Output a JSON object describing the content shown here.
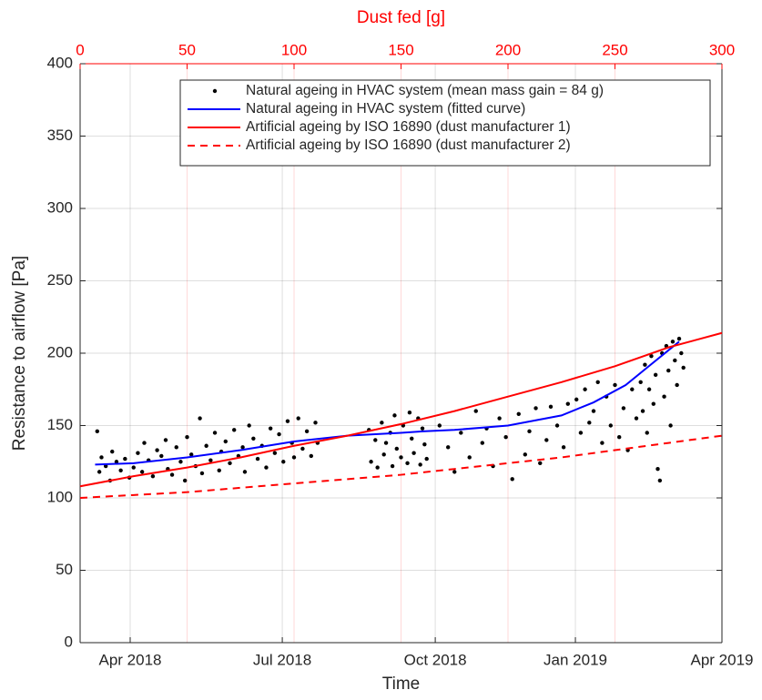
{
  "chart_data": {
    "type": "line",
    "xlabel": "Dust fed [g]",
    "xlim": [
      0,
      300
    ],
    "xticks": [
      0,
      50,
      100,
      150,
      200,
      250,
      300
    ],
    "axis_color": "#ff0000",
    "time_axis": {
      "label": "Time",
      "ticks": [
        {
          "value": 23.4,
          "label": "Apr 2018"
        },
        {
          "value": 94.5,
          "label": "Jul 2018"
        },
        {
          "value": 166,
          "label": "Oct 2018"
        },
        {
          "value": 231.5,
          "label": "Jan 2019"
        },
        {
          "value": 300,
          "label": "Apr 2019"
        }
      ]
    },
    "ylabel": "Resistance to airflow [Pa]",
    "ylim": [
      0,
      400
    ],
    "yticks": [
      0,
      50,
      100,
      150,
      200,
      250,
      300,
      350,
      400
    ],
    "grid": true,
    "legend": "top-right",
    "series": [
      {
        "name": "Natural ageing in HVAC system (mean mass gain = 84 g)",
        "type": "scatter",
        "color": "#000000",
        "x": [
          8,
          9,
          10,
          12,
          14,
          15,
          17,
          19,
          21,
          23,
          25,
          27,
          29,
          30,
          32,
          34,
          36,
          38,
          40,
          41,
          43,
          45,
          47,
          49,
          50,
          52,
          54,
          56,
          57,
          59,
          61,
          63,
          65,
          66,
          68,
          70,
          72,
          74,
          76,
          77,
          79,
          81,
          83,
          85,
          87,
          89,
          91,
          93,
          95,
          97,
          99,
          100,
          102,
          104,
          106,
          108,
          110,
          111,
          135,
          136,
          138,
          139,
          141,
          142,
          143,
          145,
          146,
          147,
          148,
          150,
          151,
          153,
          154,
          155,
          156,
          158,
          159,
          160,
          161,
          162,
          168,
          172,
          175,
          178,
          182,
          185,
          188,
          190,
          193,
          196,
          199,
          202,
          205,
          208,
          210,
          213,
          215,
          218,
          220,
          223,
          226,
          228,
          232,
          234,
          236,
          238,
          240,
          242,
          244,
          246,
          248,
          250,
          252,
          254,
          256,
          258,
          260,
          262,
          263,
          264,
          265,
          266,
          267,
          268,
          269,
          270,
          271,
          272,
          273,
          274,
          275,
          276,
          277,
          278,
          279,
          280,
          281,
          282
        ],
        "values": [
          146,
          118,
          128,
          122,
          112,
          132,
          125,
          119,
          127,
          114,
          121,
          131,
          118,
          138,
          126,
          115,
          133,
          129,
          140,
          120,
          116,
          135,
          125,
          112,
          142,
          130,
          122,
          155,
          117,
          136,
          126,
          145,
          119,
          132,
          139,
          124,
          147,
          129,
          135,
          118,
          150,
          141,
          127,
          136,
          121,
          148,
          131,
          144,
          125,
          153,
          138,
          128,
          155,
          134,
          146,
          129,
          152,
          138,
          147,
          125,
          140,
          121,
          152,
          130,
          138,
          145,
          122,
          157,
          134,
          128,
          150,
          124,
          159,
          141,
          131,
          155,
          123,
          148,
          137,
          127,
          150,
          135,
          118,
          145,
          128,
          160,
          138,
          148,
          122,
          155,
          142,
          113,
          158,
          130,
          146,
          162,
          124,
          140,
          163,
          150,
          135,
          165,
          168,
          145,
          175,
          152,
          160,
          180,
          138,
          170,
          150,
          178,
          142,
          162,
          133,
          175,
          155,
          180,
          160,
          192,
          145,
          175,
          198,
          165,
          185,
          120,
          112,
          200,
          170,
          205,
          188,
          150,
          208,
          195,
          178,
          210,
          200,
          190
        ]
      },
      {
        "name": "Natural ageing in HVAC system (fitted curve)",
        "type": "line",
        "color": "#0000ff",
        "x": [
          7,
          25,
          50,
          75,
          100,
          125,
          150,
          160,
          175,
          200,
          225,
          240,
          255,
          265,
          275,
          280
        ],
        "values": [
          123,
          124,
          128,
          133,
          139,
          143,
          145,
          146,
          147,
          150,
          157,
          166,
          178,
          190,
          202,
          208
        ]
      },
      {
        "name": "Artificial ageing by ISO 16890 (dust manufacturer 1)",
        "type": "line",
        "color": "#ff0000",
        "x": [
          0,
          25,
          50,
          75,
          100,
          125,
          150,
          175,
          200,
          225,
          250,
          275,
          300
        ],
        "values": [
          108,
          115,
          121,
          128,
          136,
          143,
          151,
          160,
          170,
          180,
          191,
          204,
          214
        ]
      },
      {
        "name": "Artificial ageing by ISO 16890 (dust manufacturer 2)",
        "type": "line",
        "color": "#ff0000",
        "dashed": true,
        "x": [
          0,
          25,
          50,
          75,
          100,
          125,
          150,
          175,
          200,
          225,
          250,
          275,
          300
        ],
        "values": [
          100,
          102,
          104,
          107,
          110,
          113,
          116,
          120,
          124,
          128,
          133,
          138,
          143
        ]
      }
    ]
  }
}
